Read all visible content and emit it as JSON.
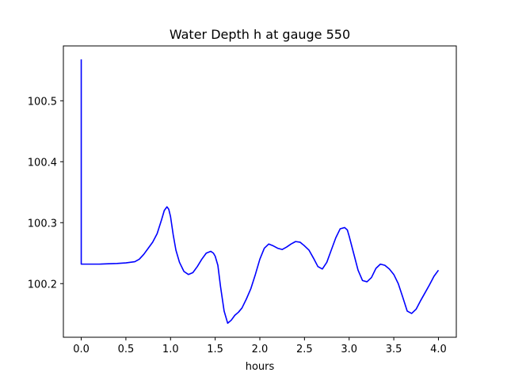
{
  "chart_data": {
    "type": "line",
    "title": "Water Depth h at gauge 550",
    "xlabel": "hours",
    "ylabel": "",
    "xlim": [
      -0.2,
      4.2
    ],
    "ylim": [
      100.112,
      100.59
    ],
    "xticks": [
      0.0,
      0.5,
      1.0,
      1.5,
      2.0,
      2.5,
      3.0,
      3.5,
      4.0
    ],
    "xtick_labels": [
      "0.0",
      "0.5",
      "1.0",
      "1.5",
      "2.0",
      "2.5",
      "3.0",
      "3.5",
      "4.0"
    ],
    "yticks": [
      100.2,
      100.3,
      100.4,
      100.5
    ],
    "ytick_labels": [
      "100.2",
      "100.3",
      "100.4",
      "100.5"
    ],
    "grid": false,
    "series": [
      {
        "color": "#0000ff",
        "x": [
          0.0,
          0.0,
          0.0,
          0.1,
          0.2,
          0.3,
          0.4,
          0.5,
          0.6,
          0.65,
          0.7,
          0.75,
          0.8,
          0.85,
          0.9,
          0.93,
          0.96,
          0.98,
          1.0,
          1.03,
          1.06,
          1.1,
          1.15,
          1.2,
          1.25,
          1.3,
          1.35,
          1.4,
          1.45,
          1.48,
          1.5,
          1.53,
          1.56,
          1.6,
          1.64,
          1.68,
          1.72,
          1.76,
          1.8,
          1.85,
          1.9,
          1.95,
          2.0,
          2.05,
          2.1,
          2.15,
          2.2,
          2.25,
          2.3,
          2.35,
          2.4,
          2.45,
          2.5,
          2.55,
          2.6,
          2.65,
          2.7,
          2.75,
          2.8,
          2.85,
          2.9,
          2.95,
          2.98,
          3.0,
          3.05,
          3.1,
          3.15,
          3.2,
          3.25,
          3.3,
          3.35,
          3.4,
          3.45,
          3.5,
          3.55,
          3.6,
          3.65,
          3.7,
          3.75,
          3.8,
          3.85,
          3.9,
          3.95,
          4.0
        ],
        "y": [
          100.568,
          100.45,
          100.232,
          100.232,
          100.232,
          100.2325,
          100.233,
          100.234,
          100.236,
          100.24,
          100.248,
          100.258,
          100.268,
          100.282,
          100.305,
          100.32,
          100.326,
          100.322,
          100.31,
          100.28,
          100.255,
          100.235,
          100.22,
          100.215,
          100.218,
          100.228,
          100.24,
          100.25,
          100.253,
          100.25,
          100.245,
          100.23,
          100.195,
          100.155,
          100.135,
          100.14,
          100.148,
          100.153,
          100.16,
          100.175,
          100.192,
          100.215,
          100.24,
          100.258,
          100.265,
          100.262,
          100.258,
          100.256,
          100.26,
          100.265,
          100.269,
          100.268,
          100.262,
          100.255,
          100.242,
          100.228,
          100.224,
          100.235,
          100.255,
          100.275,
          100.29,
          100.292,
          100.288,
          100.278,
          100.25,
          100.222,
          100.205,
          100.203,
          100.21,
          100.225,
          100.232,
          100.23,
          100.224,
          100.215,
          100.2,
          100.178,
          100.155,
          100.151,
          100.158,
          100.172,
          100.185,
          100.198,
          100.212,
          100.222
        ]
      }
    ]
  }
}
